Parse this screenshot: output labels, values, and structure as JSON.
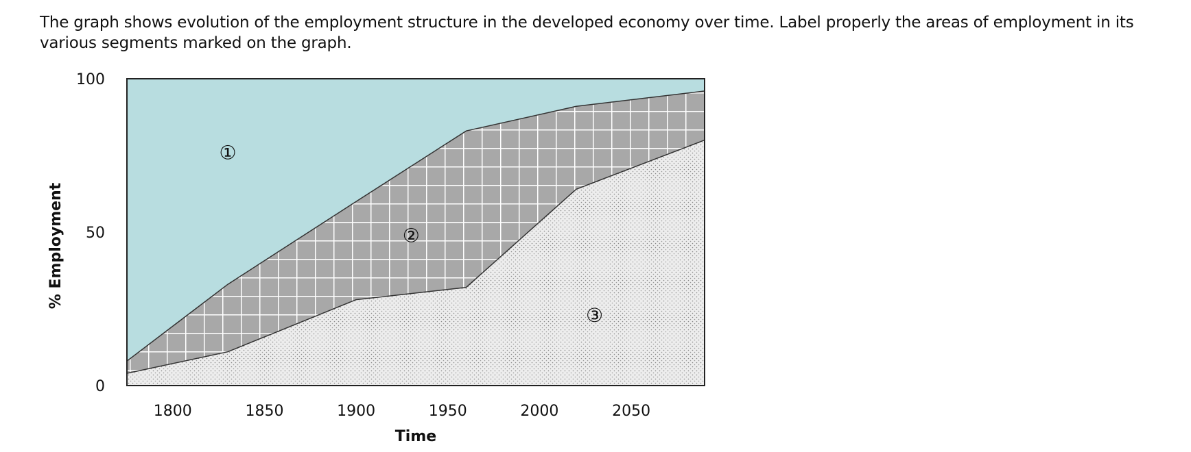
{
  "question": {
    "text": "The graph shows evolution of the employment structure in the developed economy over time. Label properly the areas of employment in its various segments marked on the graph."
  },
  "chart_data": {
    "type": "area",
    "title": "",
    "xlabel": "Time",
    "ylabel": "% Employment",
    "xlim": [
      1775,
      2090
    ],
    "ylim": [
      0,
      100
    ],
    "x_ticks": [
      1800,
      1850,
      1900,
      1950,
      2000,
      2050
    ],
    "y_ticks": [
      0,
      50,
      100
    ],
    "grid": false,
    "legend": "none",
    "boundaries": [
      {
        "name": "lower boundary",
        "x": [
          1775,
          1830,
          1900,
          1960,
          2020,
          2090
        ],
        "y": [
          4,
          11,
          28,
          32,
          64,
          80
        ]
      },
      {
        "name": "upper boundary",
        "x": [
          1775,
          1830,
          1900,
          1960,
          2020,
          2090
        ],
        "y": [
          8,
          33,
          60,
          83,
          91,
          96
        ]
      }
    ],
    "regions": [
      {
        "label": "①",
        "fill": "#b8dde0",
        "pattern": "solid",
        "label_x": 1830,
        "label_y": 76
      },
      {
        "label": "②",
        "fill": "#a8a8a8",
        "pattern": "grid",
        "label_x": 1930,
        "label_y": 49
      },
      {
        "label": "③",
        "fill": "#e6e6e6",
        "pattern": "dots",
        "label_x": 2030,
        "label_y": 23
      }
    ]
  }
}
